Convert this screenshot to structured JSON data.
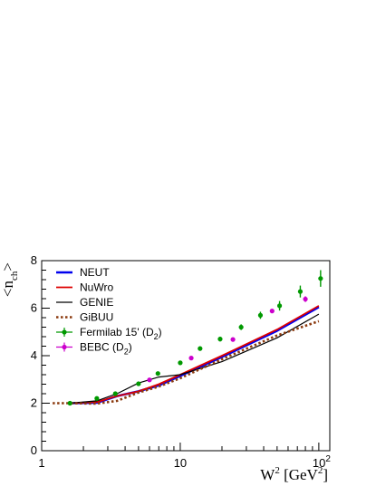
{
  "chart_data": {
    "type": "line",
    "xscale": "log",
    "xlabel": {
      "base": "W",
      "sup": "2",
      "unit_open": " [GeV",
      "unit_sup": "2",
      "unit_close": "]"
    },
    "ylabel": {
      "open": "<n",
      "sub": "ch",
      "close": ">"
    },
    "xlim": [
      1,
      120
    ],
    "ylim": [
      0,
      8
    ],
    "x_ticks": [
      {
        "value": 1,
        "label": "1"
      },
      {
        "value": 10,
        "label": "10"
      },
      {
        "value": 100,
        "label": "10",
        "sup": "2"
      }
    ],
    "y_ticks": [
      {
        "value": 0,
        "label": "0"
      },
      {
        "value": 2,
        "label": "2"
      },
      {
        "value": 4,
        "label": "4"
      },
      {
        "value": 6,
        "label": "6"
      },
      {
        "value": 8,
        "label": "8"
      }
    ],
    "grid": false,
    "legend_position": "top-left",
    "series": [
      {
        "name": "NEUT",
        "kind": "line",
        "color": "#0000ee",
        "style": "solid",
        "weight": "thick",
        "x": [
          1.6,
          2.5,
          3.5,
          5,
          7,
          10,
          20,
          50,
          100
        ],
        "y": [
          2.0,
          2.02,
          2.3,
          2.5,
          2.75,
          3.15,
          3.95,
          5.05,
          6.05
        ]
      },
      {
        "name": "NuWro",
        "kind": "line",
        "color": "#dd0000",
        "style": "solid",
        "weight": "medium",
        "x": [
          1.6,
          2.5,
          3.5,
          5,
          7,
          10,
          20,
          50,
          100
        ],
        "y": [
          2.0,
          2.05,
          2.3,
          2.5,
          2.8,
          3.2,
          4.0,
          5.1,
          6.1
        ]
      },
      {
        "name": "GENIE",
        "kind": "line",
        "color": "#000000",
        "style": "solid",
        "weight": "thin",
        "x": [
          1.6,
          2.5,
          3.5,
          5,
          7,
          10,
          20,
          50,
          100
        ],
        "y": [
          2.0,
          2.1,
          2.4,
          2.85,
          3.1,
          3.2,
          3.75,
          4.75,
          5.75
        ]
      },
      {
        "name": "GiBUU",
        "kind": "line",
        "color": "#8b3a0f",
        "style": "dotted",
        "weight": "thick",
        "x": [
          1.2,
          1.6,
          2.5,
          3.5,
          5,
          7,
          10,
          20,
          50,
          100
        ],
        "y": [
          2.0,
          2.0,
          1.98,
          2.1,
          2.45,
          2.7,
          3.05,
          3.85,
          4.85,
          5.45
        ]
      },
      {
        "name": "Fermilab 15' (D",
        "name_sub": "2",
        "name_close": ")",
        "kind": "points",
        "color": "#009900",
        "x": [
          1.6,
          2.5,
          3.4,
          5.0,
          6.9,
          10.0,
          13.9,
          19.4,
          27.5,
          37.9,
          52.1,
          73.5,
          103.0
        ],
        "y": [
          2.0,
          2.2,
          2.4,
          2.82,
          3.25,
          3.7,
          4.3,
          4.7,
          5.2,
          5.7,
          6.1,
          6.7,
          7.25
        ],
        "err": [
          0.03,
          0.05,
          0.06,
          0.07,
          0.08,
          0.08,
          0.09,
          0.1,
          0.12,
          0.15,
          0.2,
          0.25,
          0.35
        ]
      },
      {
        "name": "BEBC (D",
        "name_sub": "2",
        "name_close": ")",
        "kind": "points",
        "color": "#cc00cc",
        "x": [
          6.0,
          12.0,
          24.0,
          46.0,
          80.0
        ],
        "y": [
          2.98,
          3.9,
          4.68,
          5.88,
          6.38
        ],
        "err": [
          0.03,
          0.04,
          0.06,
          0.08,
          0.12
        ]
      }
    ]
  }
}
